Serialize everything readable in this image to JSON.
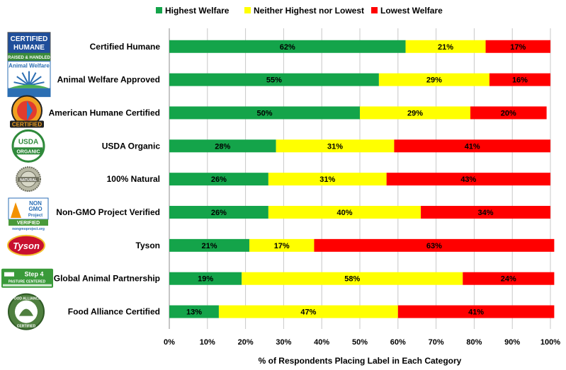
{
  "chart_data": {
    "type": "bar",
    "orientation": "horizontal",
    "stacked": true,
    "categories": [
      "Certified Humane",
      "Animal Welfare Approved",
      "American Humane Certified",
      "USDA Organic",
      "100% Natural",
      "Non-GMO Project Verified",
      "Tyson",
      "Global Animal Partnership",
      "Food Alliance Certified"
    ],
    "series": [
      {
        "name": "Highest Welfare",
        "color": "#14a44a",
        "values": [
          62,
          55,
          50,
          28,
          26,
          26,
          21,
          19,
          13
        ],
        "labels": [
          "62%",
          "55%",
          "50%",
          "28%",
          "26%",
          "26%",
          "21%",
          "19%",
          "13%"
        ]
      },
      {
        "name": "Neither Highest nor Lowest",
        "color": "#ffff00",
        "values": [
          21,
          29,
          29,
          31,
          31,
          40,
          17,
          58,
          47
        ],
        "labels": [
          "21%",
          "29%",
          "29%",
          "31%",
          "31%",
          "40%",
          "17%",
          "58%",
          "47%"
        ]
      },
      {
        "name": "Lowest Welfare",
        "color": "#ff0000",
        "values": [
          17,
          16,
          20,
          41,
          43,
          34,
          63,
          24,
          41
        ],
        "labels": [
          "17%",
          "16%",
          "20%",
          "41%",
          "43%",
          "34%",
          "63%",
          "24%",
          "41%"
        ]
      }
    ],
    "xlabel": "% of Respondents Placing Label in Each Category",
    "xlim": [
      0,
      100
    ],
    "xticks": [
      0,
      10,
      20,
      30,
      40,
      50,
      60,
      70,
      80,
      90,
      100
    ],
    "xtick_labels": [
      "0%",
      "10%",
      "20%",
      "30%",
      "40%",
      "50%",
      "60%",
      "70%",
      "80%",
      "90%",
      "100%"
    ],
    "grid": "vertical",
    "legend": "top"
  },
  "logos": [
    {
      "icon": "certified-humane-logo",
      "lines": [
        "CERTIFIED",
        "HUMANE",
        "RAISED & HANDLED"
      ]
    },
    {
      "icon": "animal-welfare-approved-logo",
      "lines": [
        "Animal Welfare"
      ]
    },
    {
      "icon": "american-humane-certified-logo",
      "lines": [
        "CERTIFIED"
      ]
    },
    {
      "icon": "usda-organic-logo",
      "lines": [
        "USDA",
        "ORGANIC"
      ]
    },
    {
      "icon": "natural-seal-logo",
      "lines": [
        "NATURAL"
      ]
    },
    {
      "icon": "non-gmo-project-logo",
      "lines": [
        "NON",
        "GMO",
        "Project",
        "VERIFIED",
        "nongmoproject.org"
      ]
    },
    {
      "icon": "tyson-logo",
      "lines": [
        "Tyson"
      ]
    },
    {
      "icon": "global-animal-partnership-logo",
      "lines": [
        "Step 4",
        "PASTURE CENTERED"
      ]
    },
    {
      "icon": "food-alliance-certified-logo",
      "lines": [
        "FOOD ALLIANCE",
        "CERTIFIED"
      ]
    }
  ]
}
